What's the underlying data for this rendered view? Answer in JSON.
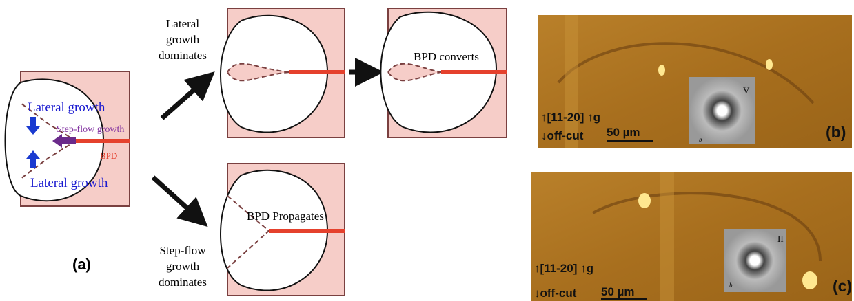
{
  "panel_a": {
    "label": "(a)",
    "initial": {
      "lateral_top": "Lateral growth",
      "step_flow": "Step-flow growth",
      "bpd": "BPD",
      "lateral_bottom": "Lateral growth"
    },
    "upper_branch": {
      "condition": [
        "Lateral",
        "growth",
        "dominates"
      ],
      "result": "BPD converts"
    },
    "lower_branch": {
      "condition": [
        "Step-flow",
        "growth",
        "dominates"
      ],
      "result": "BPD Propagates"
    }
  },
  "panel_b": {
    "label": "(b)",
    "direction": "↑[11-20] ↑g",
    "offcut": "↓off-cut",
    "scale": "50 µm",
    "inset": "V",
    "burgers": "b"
  },
  "panel_c": {
    "label": "(c)",
    "direction": "↑[11-20] ↑g",
    "offcut": "↓off-cut",
    "scale": "50 µm",
    "inset": "II",
    "burgers": "b"
  }
}
